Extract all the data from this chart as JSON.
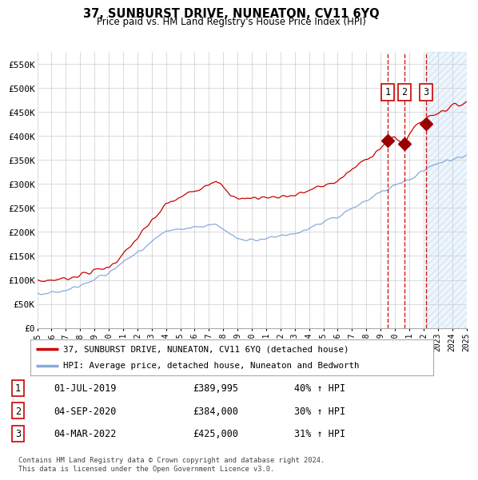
{
  "title1": "37, SUNBURST DRIVE, NUNEATON, CV11 6YQ",
  "title2": "Price paid vs. HM Land Registry's House Price Index (HPI)",
  "legend_label1": "37, SUNBURST DRIVE, NUNEATON, CV11 6YQ (detached house)",
  "legend_label2": "HPI: Average price, detached house, Nuneaton and Bedworth",
  "transaction_table": [
    {
      "num": "1",
      "date": "01-JUL-2019",
      "price": "£389,995",
      "change": "40% ↑ HPI"
    },
    {
      "num": "2",
      "date": "04-SEP-2020",
      "price": "£384,000",
      "change": "30% ↑ HPI"
    },
    {
      "num": "3",
      "date": "04-MAR-2022",
      "price": "£425,000",
      "change": "31% ↑ HPI"
    }
  ],
  "trans_dates": [
    2019.5,
    2020.67,
    2022.17
  ],
  "trans_prices": [
    389995,
    384000,
    425000
  ],
  "trans_labels": [
    "1",
    "2",
    "3"
  ],
  "footer": "Contains HM Land Registry data © Crown copyright and database right 2024.\nThis data is licensed under the Open Government Licence v3.0.",
  "ylim": [
    0,
    575000
  ],
  "yticks": [
    0,
    50000,
    100000,
    150000,
    200000,
    250000,
    300000,
    350000,
    400000,
    450000,
    500000,
    550000
  ],
  "ytick_labels": [
    "£0",
    "£50K",
    "£100K",
    "£150K",
    "£200K",
    "£250K",
    "£300K",
    "£350K",
    "£400K",
    "£450K",
    "£500K",
    "£550K"
  ],
  "line_color_red": "#cc0000",
  "line_color_blue": "#88aadd",
  "vline_color": "#cc0000",
  "grid_color": "#cccccc",
  "bg_color": "#ffffff",
  "hatch_color": "#ddeeff"
}
